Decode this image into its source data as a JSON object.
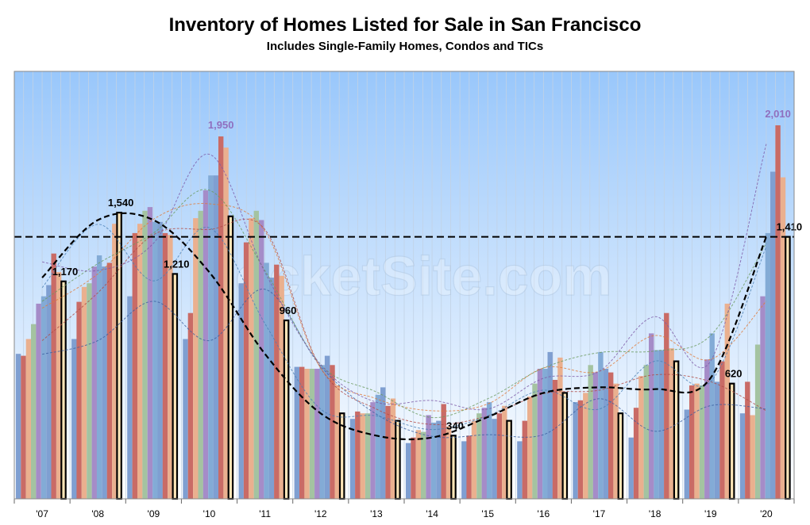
{
  "title": "Inventory of Homes Listed for Sale in San Francisco",
  "subtitle": "Includes Single-Family Homes, Condos and TICs",
  "watermark": "SocketSite.com",
  "colors": {
    "bg_top": "#99c7fb",
    "bg_bottom": "#ffffff",
    "palette": [
      "#7f9fd1",
      "#c96b66",
      "#eab08f",
      "#a4c3a1",
      "#a58cc8",
      "#83abd6"
    ],
    "highlight_fill": "#ffe6b8",
    "highlight_outline": "#000000",
    "trend_line": "#000000",
    "reference_line": "#000000",
    "peak_label": "#8f6fbf"
  },
  "chart_data": {
    "type": "bar",
    "categories": [
      "'07",
      "'08",
      "'09",
      "'10",
      "'11",
      "'12",
      "'13",
      "'14",
      "'15",
      "'16",
      "'17",
      "'18",
      "'19",
      "'20"
    ],
    "ylim": [
      0,
      2300
    ],
    "grid": true,
    "reference_line": 1410,
    "series_per_year": [
      [
        780,
        770,
        860,
        940,
        1050,
        1090,
        1150,
        1320,
        1220,
        1170
      ],
      [
        860,
        1060,
        1140,
        1160,
        1250,
        1310,
        1250,
        1270,
        1480,
        1540
      ],
      [
        1090,
        1430,
        1480,
        1550,
        1570,
        1490,
        1490,
        1430,
        1420,
        1210
      ],
      [
        860,
        1000,
        1510,
        1550,
        1660,
        1740,
        1740,
        1950,
        1890,
        1520
      ],
      [
        1160,
        1380,
        1510,
        1550,
        1500,
        1270,
        1190,
        1260,
        1200,
        960
      ],
      [
        710,
        710,
        700,
        700,
        700,
        720,
        770,
        720,
        610,
        460
      ],
      [
        430,
        470,
        460,
        460,
        520,
        560,
        600,
        500,
        540,
        420
      ],
      [
        300,
        330,
        370,
        360,
        450,
        410,
        420,
        510,
        390,
        340
      ],
      [
        310,
        340,
        420,
        460,
        490,
        520,
        430,
        460,
        500,
        420
      ],
      [
        310,
        420,
        550,
        620,
        700,
        700,
        790,
        640,
        760,
        570
      ],
      [
        520,
        530,
        570,
        720,
        680,
        790,
        700,
        680,
        620,
        460
      ],
      [
        330,
        490,
        660,
        720,
        890,
        800,
        800,
        1000,
        810,
        740
      ],
      [
        480,
        610,
        620,
        610,
        750,
        890,
        630,
        740,
        1050,
        620
      ],
      [
        460,
        630,
        450,
        830,
        1090,
        1430,
        1760,
        2010,
        1730,
        1410
      ]
    ],
    "highlight_labels": [
      "1,170",
      "1,540",
      "1,210",
      "",
      "960",
      "",
      "",
      "340",
      "",
      "",
      "",
      "",
      "620",
      "1,410"
    ],
    "peak_labels": [
      {
        "year_index": 3,
        "value": "1,950"
      },
      {
        "year_index": 13,
        "value": "2,010"
      }
    ],
    "trend_line_values": [
      1190,
      1500,
      1500,
      1220,
      780,
      460,
      340,
      330,
      440,
      570,
      600,
      590,
      650,
      1410
    ]
  }
}
